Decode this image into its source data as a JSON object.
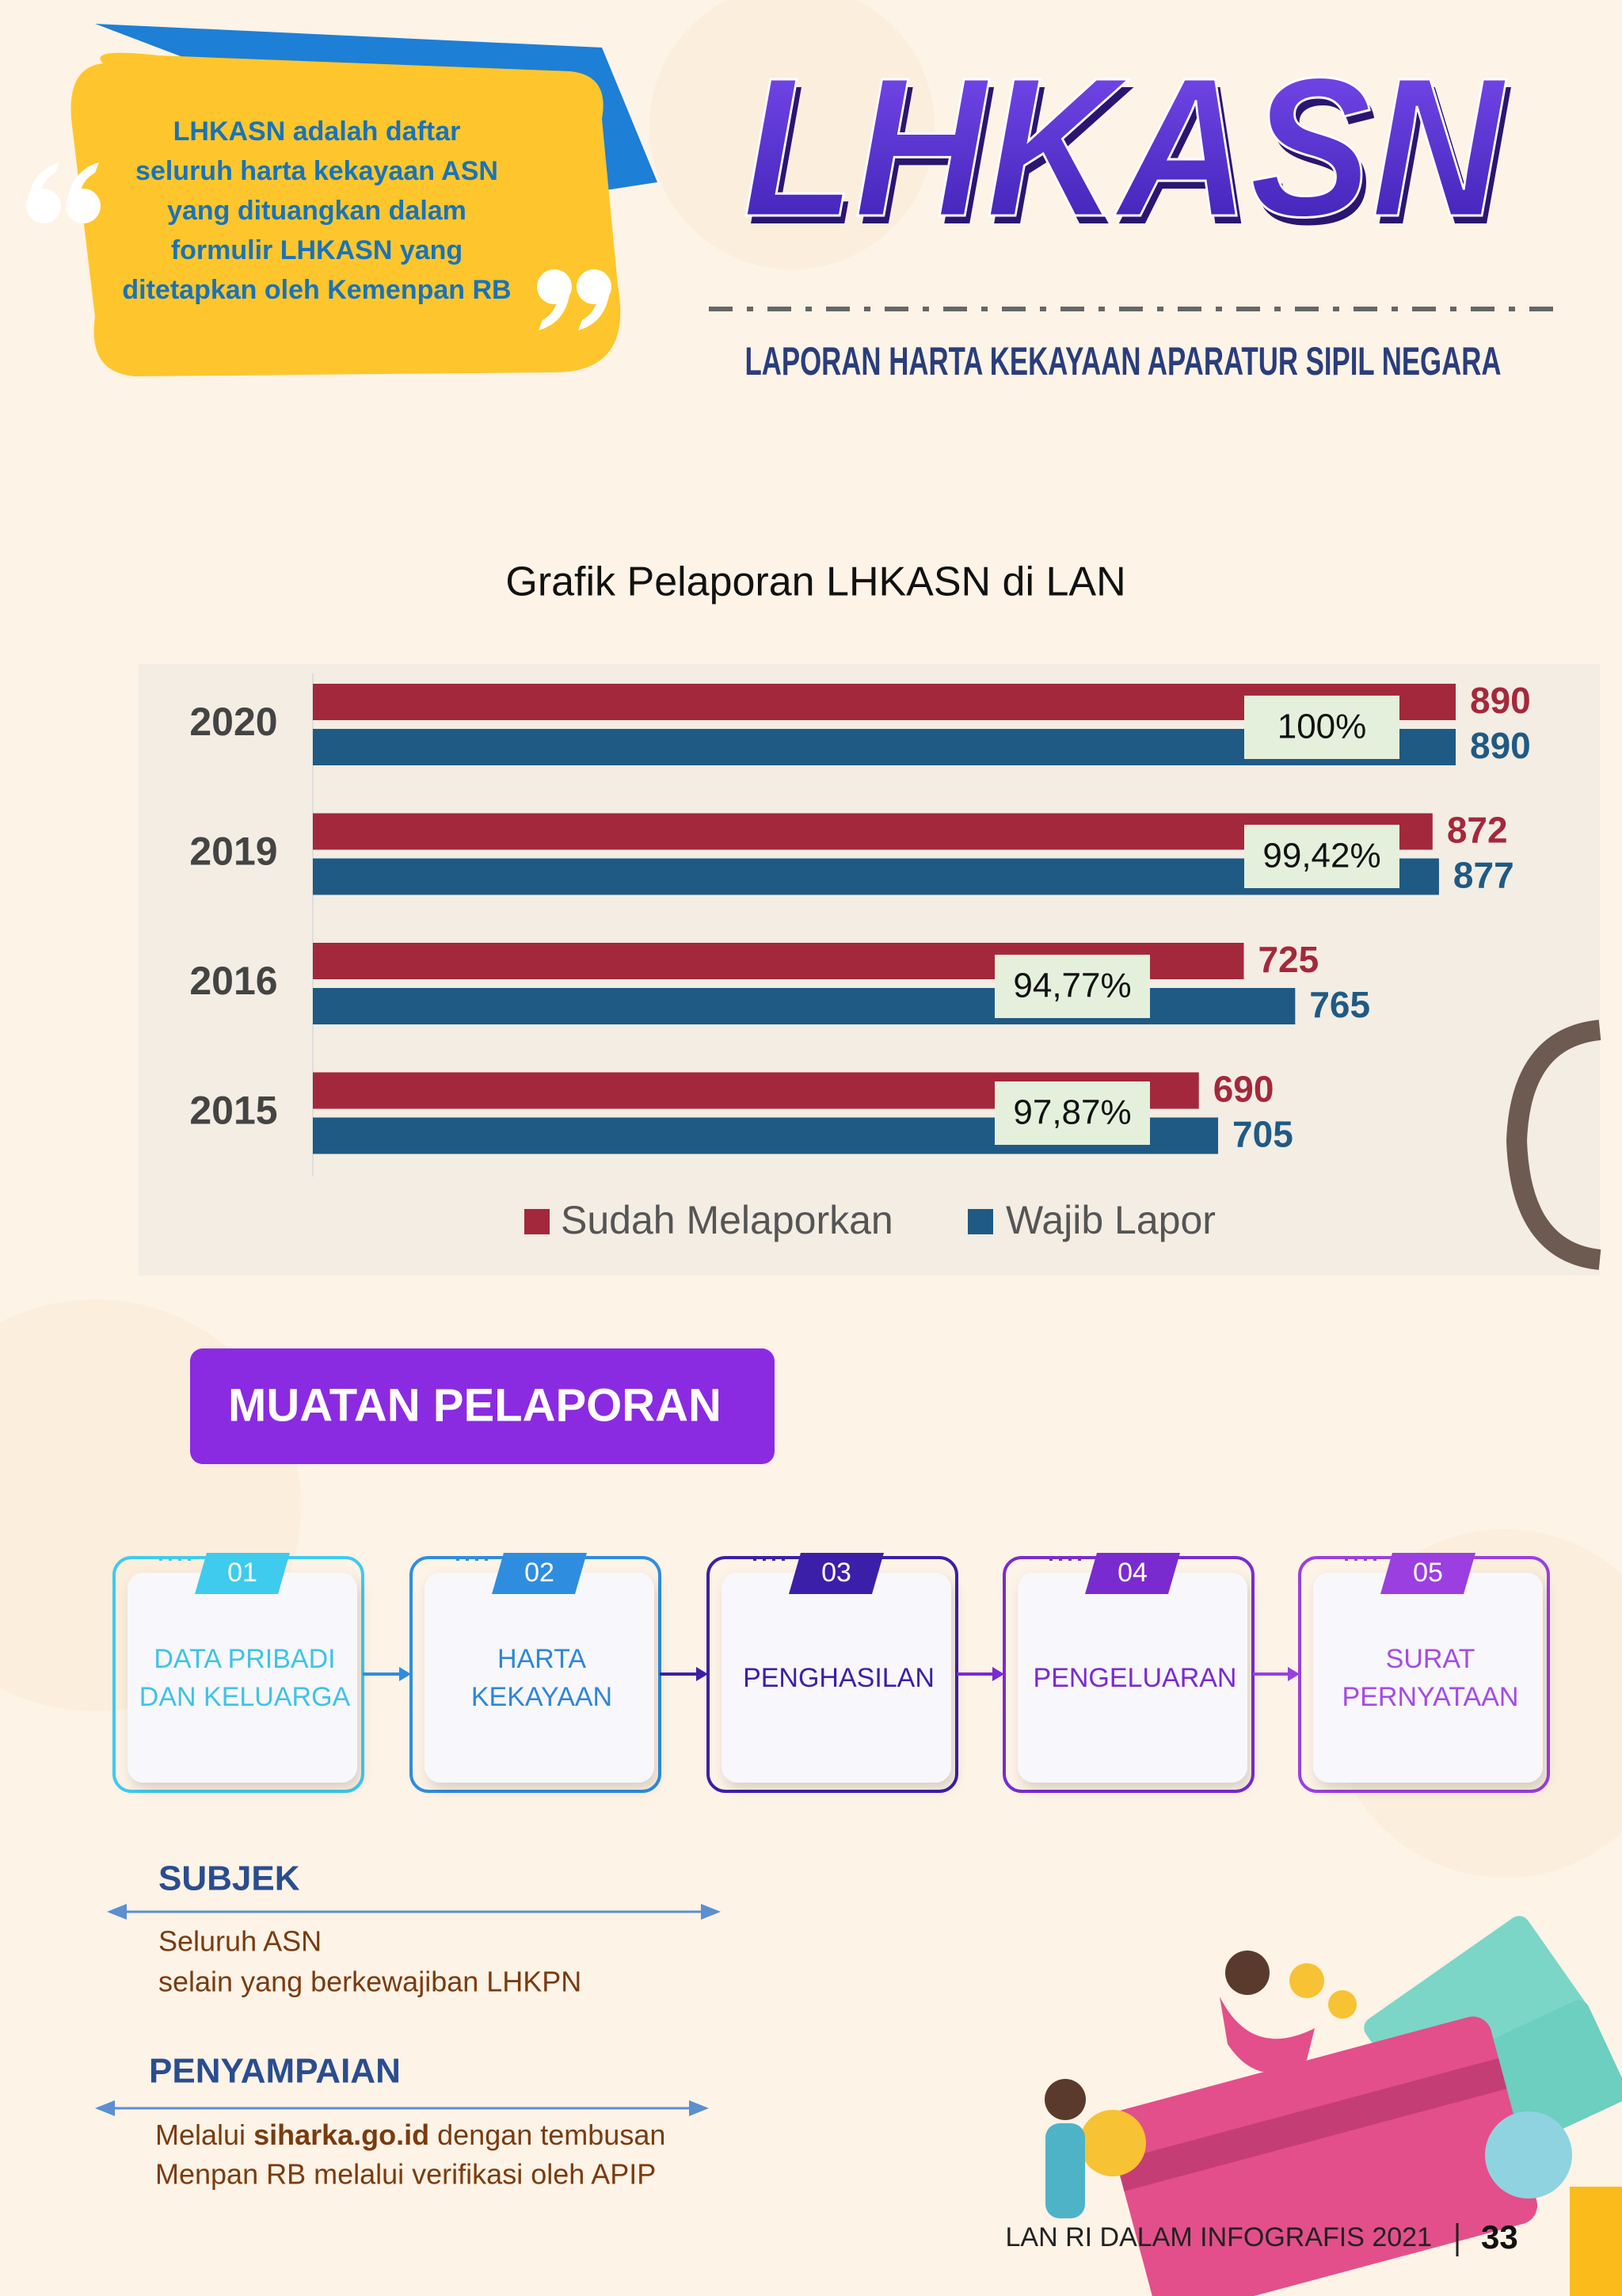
{
  "quote_lines": [
    "LHKASN adalah daftar",
    "seluruh harta kekayaan ASN",
    "yang dituangkan dalam",
    "formulir LHKASN yang",
    "ditetapkan oleh Kemenpan RB"
  ],
  "title": "LHKASN",
  "subtitle": "LAPORAN HARTA KEKAYAAN APARATUR SIPIL NEGARA",
  "chart_data": {
    "type": "bar",
    "title": "Grafik Pelaporan LHKASN di LAN",
    "categories": [
      "2020",
      "2019",
      "2016",
      "2015"
    ],
    "series": [
      {
        "name": "Sudah Melaporkan",
        "color": "#a4283b",
        "values": [
          890,
          872,
          725,
          690
        ]
      },
      {
        "name": "Wajib Lapor",
        "color": "#1f5a85",
        "values": [
          890,
          877,
          765,
          705
        ]
      }
    ],
    "annotations": [
      "100%",
      "99,42%",
      "94,77%",
      "97,87%"
    ],
    "xlim": [
      0,
      890
    ]
  },
  "section_title": "MUATAN PELAPORAN",
  "steps": [
    {
      "number": "01",
      "label": [
        "DATA PRIBADI",
        "DAN KELUARGA"
      ]
    },
    {
      "number": "02",
      "label": [
        "HARTA",
        "KEKAYAAN"
      ]
    },
    {
      "number": "03",
      "label": [
        "PENGHASILAN"
      ]
    },
    {
      "number": "04",
      "label": [
        "PENGELUARAN"
      ]
    },
    {
      "number": "05",
      "label": [
        "SURAT",
        "PERNYATAAN"
      ]
    }
  ],
  "subjek": {
    "heading": "SUBJEK",
    "lines": [
      "Seluruh ASN",
      "selain yang berkewajiban LHKPN"
    ]
  },
  "penyampaian": {
    "heading": "PENYAMPAIAN",
    "line1": {
      "before": "Melalui ",
      "link": "siharka.go.id",
      "after": " dengan tembusan"
    },
    "line2": "Menpan RB melalui verifikasi oleh APIP"
  },
  "footer": {
    "text": "LAN RI DALAM INFOGRAFIS 2021",
    "page": "33"
  }
}
